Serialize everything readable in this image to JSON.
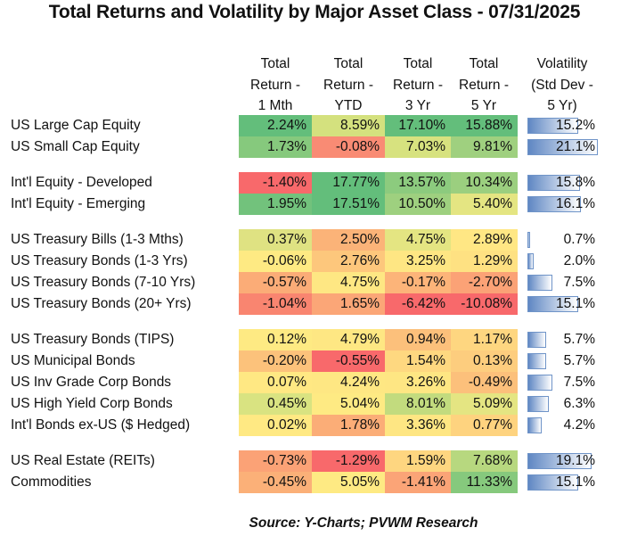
{
  "title": "Total Returns and Volatility by Major Asset Class - 07/31/2025",
  "source": "Source:  Y-Charts; PVWM Research",
  "chart_data": {
    "type": "table",
    "title": "Total Returns and Volatility by Major Asset Class - 07/31/2025",
    "columns": [
      {
        "key": "m1",
        "lines": [
          "Total",
          "Return -",
          "1 Mth"
        ]
      },
      {
        "key": "ytd",
        "lines": [
          "Total",
          "Return -",
          "YTD"
        ]
      },
      {
        "key": "y3",
        "lines": [
          "Total",
          "Return -",
          "3 Yr"
        ]
      },
      {
        "key": "y5",
        "lines": [
          "Total",
          "Return -",
          "5 Yr"
        ]
      },
      {
        "key": "vol",
        "lines": [
          "Volatility",
          "(Std Dev -",
          "5 Yr)"
        ]
      }
    ],
    "groups": [
      {
        "rows": [
          {
            "label": "US Large Cap Equity",
            "m1": "2.24%",
            "ytd": "8.59%",
            "y3": "17.10%",
            "y5": "15.88%",
            "vol": "15.2%",
            "vol_value": 15.2,
            "colors": [
              "#63be7b",
              "#d4e17e",
              "#63be7b",
              "#63be7b"
            ]
          },
          {
            "label": "US Small Cap Equity",
            "m1": "1.73%",
            "ytd": "-0.08%",
            "y3": "7.03%",
            "y5": "9.81%",
            "vol": "21.1%",
            "vol_value": 21.1,
            "colors": [
              "#86c97d",
              "#f98b74",
              "#d7e27f",
              "#9fd07f"
            ]
          }
        ]
      },
      {
        "rows": [
          {
            "label": "Int'l Equity - Developed",
            "m1": "-1.40%",
            "ytd": "17.77%",
            "y3": "13.57%",
            "y5": "10.34%",
            "vol": "15.8%",
            "vol_value": 15.8,
            "colors": [
              "#f8696b",
              "#63be7b",
              "#8ccb7e",
              "#9bcf7f"
            ]
          },
          {
            "label": "Int'l Equity - Emerging",
            "m1": "1.95%",
            "ytd": "17.51%",
            "y3": "10.50%",
            "y5": "5.40%",
            "vol": "16.1%",
            "vol_value": 16.1,
            "colors": [
              "#72c27c",
              "#63be7b",
              "#9ed07f",
              "#e4e582"
            ]
          }
        ]
      },
      {
        "rows": [
          {
            "label": "US Treasury Bills (1-3 Mths)",
            "m1": "0.37%",
            "ytd": "2.50%",
            "y3": "4.75%",
            "y5": "2.89%",
            "vol": "0.7%",
            "vol_value": 0.7,
            "colors": [
              "#dfe282",
              "#fbb378",
              "#e4e582",
              "#ffe784"
            ]
          },
          {
            "label": "US Treasury Bonds (1-3 Yrs)",
            "m1": "-0.06%",
            "ytd": "2.76%",
            "y3": "3.25%",
            "y5": "1.29%",
            "vol": "2.0%",
            "vol_value": 2.0,
            "colors": [
              "#feea83",
              "#fdc77c",
              "#fee683",
              "#fee182"
            ]
          },
          {
            "label": "US Treasury Bonds (7-10 Yrs)",
            "m1": "-0.57%",
            "ytd": "4.75%",
            "y3": "-0.17%",
            "y5": "-2.70%",
            "vol": "7.5%",
            "vol_value": 7.5,
            "colors": [
              "#fbac77",
              "#fee783",
              "#fcb479",
              "#fba276"
            ]
          },
          {
            "label": "US Treasury Bonds (20+ Yrs)",
            "m1": "-1.04%",
            "ytd": "1.65%",
            "y3": "-6.42%",
            "y5": "-10.08%",
            "vol": "15.1%",
            "vol_value": 15.1,
            "colors": [
              "#f98570",
              "#fba677",
              "#f8696b",
              "#f8696b"
            ]
          }
        ]
      },
      {
        "rows": [
          {
            "label": "US Treasury Bonds (TIPS)",
            "m1": "0.12%",
            "ytd": "4.79%",
            "y3": "0.94%",
            "y5": "1.17%",
            "vol": "5.7%",
            "vol_value": 5.7,
            "colors": [
              "#feea83",
              "#fee783",
              "#fcc07b",
              "#fed680"
            ]
          },
          {
            "label": "US Municipal Bonds",
            "m1": "-0.20%",
            "ytd": "-0.55%",
            "y3": "1.54%",
            "y5": "0.13%",
            "vol": "5.7%",
            "vol_value": 5.7,
            "colors": [
              "#fcc27b",
              "#f8696b",
              "#fed880",
              "#fdcd7e"
            ]
          },
          {
            "label": "US Inv Grade Corp Bonds",
            "m1": "0.07%",
            "ytd": "4.24%",
            "y3": "3.26%",
            "y5": "-0.49%",
            "vol": "7.5%",
            "vol_value": 7.5,
            "colors": [
              "#ffe883",
              "#fee783",
              "#fee683",
              "#fcc07b"
            ]
          },
          {
            "label": "US High Yield Corp Bonds",
            "m1": "0.45%",
            "ytd": "5.04%",
            "y3": "8.01%",
            "y5": "5.09%",
            "vol": "6.3%",
            "vol_value": 6.3,
            "colors": [
              "#d9e381",
              "#feea83",
              "#c2db7e",
              "#e4e582"
            ]
          },
          {
            "label": "Int'l Bonds ex-US ($ Hedged)",
            "m1": "0.02%",
            "ytd": "1.78%",
            "y3": "3.36%",
            "y5": "0.77%",
            "vol": "4.2%",
            "vol_value": 4.2,
            "colors": [
              "#ffe983",
              "#fbad77",
              "#fee683",
              "#fed37f"
            ]
          }
        ]
      },
      {
        "rows": [
          {
            "label": "US Real Estate (REITs)",
            "m1": "-0.73%",
            "ytd": "-1.29%",
            "y3": "1.59%",
            "y5": "7.68%",
            "vol": "19.1%",
            "vol_value": 19.1,
            "colors": [
              "#fba276",
              "#f8696b",
              "#fed680",
              "#b7d87f"
            ]
          },
          {
            "label": "Commodities",
            "m1": "-0.45%",
            "ytd": "5.05%",
            "y3": "-1.41%",
            "y5": "11.33%",
            "vol": "15.1%",
            "vol_value": 15.1,
            "colors": [
              "#fbb078",
              "#feea83",
              "#fba477",
              "#86c97d"
            ]
          }
        ]
      }
    ],
    "volatility_bar_max": 21.1
  }
}
